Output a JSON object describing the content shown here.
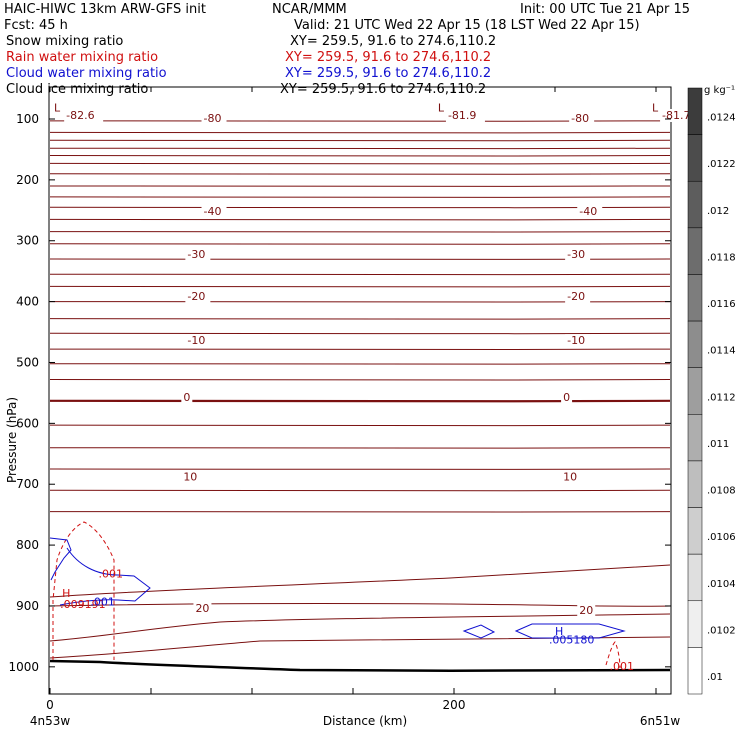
{
  "header": {
    "title_left": "HAIC-HIWC 13km ARW-GFS init",
    "org": "NCAR/MMM",
    "init": "Init: 00 UTC Tue 21 Apr 15",
    "fcst": "Fcst:   45 h",
    "valid": "Valid: 21 UTC Wed 22 Apr 15 (18 LST Wed 22 Apr 15)",
    "fields": [
      {
        "label": "Snow mixing ratio",
        "xy": "XY= 259.5, 91.6 to 274.6,110.2",
        "color": "#000000"
      },
      {
        "label": "Rain water mixing ratio",
        "xy": "XY= 259.5, 91.6 to 274.6,110.2",
        "color": "#d01010"
      },
      {
        "label": "Cloud water mixing ratio",
        "xy": "XY= 259.5, 91.6 to 274.6,110.2",
        "color": "#1010d0"
      },
      {
        "label": "Cloud ice mixing ratio",
        "xy": "XY= 259.5, 91.6 to 274.6,110.2",
        "color": "#000000"
      }
    ]
  },
  "chart_data": {
    "type": "cross-section contour",
    "ylabel": "Pressure (hPa)",
    "xlabel": "Distance (km)",
    "x_left_label": "4n53w",
    "x_right_label": "6n51w",
    "x_ticks": [
      "0",
      "200"
    ],
    "xlim": [
      0,
      300
    ],
    "ylim": [
      1040,
      60
    ],
    "y_ticks": [
      "100",
      "200",
      "300",
      "400",
      "500",
      "600",
      "700",
      "800",
      "900",
      "1000"
    ],
    "temperature_labels": [
      {
        "text": "L",
        "x": 2,
        "p": 88
      },
      {
        "text": "-82.6",
        "x": 8,
        "p": 100
      },
      {
        "text": "-80",
        "x": 76,
        "p": 105
      },
      {
        "text": "L",
        "x": 192,
        "p": 88
      },
      {
        "text": "-81.9",
        "x": 197,
        "p": 100
      },
      {
        "text": "-80",
        "x": 258,
        "p": 105
      },
      {
        "text": "L",
        "x": 298,
        "p": 88
      },
      {
        "text": "-81.7",
        "x": 303,
        "p": 100
      },
      {
        "text": "-40",
        "x": 76,
        "p": 258
      },
      {
        "text": "-40",
        "x": 262,
        "p": 258
      },
      {
        "text": "-30",
        "x": 68,
        "p": 328
      },
      {
        "text": "-30",
        "x": 256,
        "p": 328
      },
      {
        "text": "-20",
        "x": 68,
        "p": 397
      },
      {
        "text": "-20",
        "x": 256,
        "p": 397
      },
      {
        "text": "-10",
        "x": 68,
        "p": 470
      },
      {
        "text": "-10",
        "x": 256,
        "p": 470
      },
      {
        "text": "0",
        "x": 66,
        "p": 563
      },
      {
        "text": "0",
        "x": 254,
        "p": 563
      },
      {
        "text": "10",
        "x": 66,
        "p": 694
      },
      {
        "text": "10",
        "x": 254,
        "p": 694
      },
      {
        "text": "20",
        "x": 72,
        "p": 910
      },
      {
        "text": "20",
        "x": 262,
        "p": 913
      }
    ],
    "rain_labels": [
      {
        "text": ".001",
        "x": 24,
        "p": 853
      },
      {
        "text": "H",
        "x": 6,
        "p": 885
      },
      {
        "text": ".009191",
        "x": 5,
        "p": 903
      },
      {
        "text": ".001",
        "x": 277,
        "p": 1005
      }
    ],
    "cloud_labels": [
      {
        "text": ".001",
        "x": 20,
        "p": 899
      },
      {
        "text": "H",
        "x": 250,
        "p": 948
      },
      {
        "text": ".005180",
        "x": 247,
        "p": 962
      }
    ],
    "colorbar": {
      "unit": "g kg⁻¹",
      "labels": [
        ".0124",
        ".0122",
        ".012",
        ".0118",
        ".0116",
        ".0114",
        ".0112",
        ".011",
        ".0108",
        ".0106",
        ".0104",
        ".0102",
        ".01"
      ]
    }
  }
}
